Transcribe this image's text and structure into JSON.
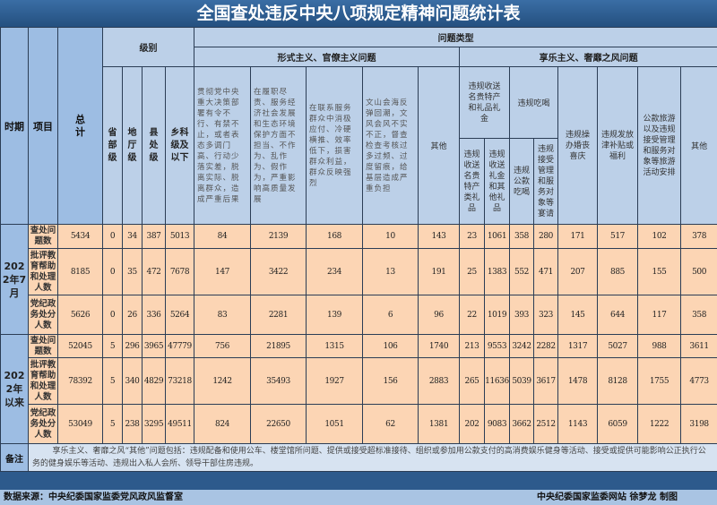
{
  "title": "全国查处违反中央八项规定精神问题统计表",
  "headers": {
    "period": "时期",
    "item": "项目",
    "total": "总计",
    "level": "级别",
    "levels": [
      "省部级",
      "地厅级",
      "县处级",
      "乡科级及以下"
    ],
    "problem_type": "问题类型",
    "formalism": "形式主义、官僚主义问题",
    "formalism_cols": [
      "贯彻党中央重大决策部署有令不行、有禁不止，或者表态多调门高、行动少落实差，脱离实际、脱离群众，造成严重后果",
      "在履职尽责、服务经济社会发展和生态环境保护方面不担当、不作为、乱作为、假作为，严重影响高质量发展",
      "在联系服务群众中消极应付、冷硬横推、效率低下，损害群众利益，群众反映强烈",
      "文山会海反弹回潮，文风会风不实不正，督查检查考核过多过频、过度留痕，给基层造成严重负担",
      "其他"
    ],
    "hedonism": "享乐主义、奢靡之风问题",
    "gifts": "违规收送名贵特产和礼品礼金",
    "gifts_sub": [
      "违规收送名贵特产类礼品",
      "违规收送礼金和其他礼品"
    ],
    "dining": "违规吃喝",
    "dining_sub": [
      "违规公款吃喝",
      "违规接受管理和服务对象等宴请"
    ],
    "weddings": "违规操办婚丧喜庆",
    "subsidies": "违规发放津补贴或福利",
    "travel": "公款旅游以及违规接受管理和服务对象等旅游活动安排",
    "other": "其他"
  },
  "periods": [
    {
      "label": "2022年7月",
      "rows": [
        {
          "item": "查处问题数",
          "values": [
            "5434",
            "0",
            "34",
            "387",
            "5013",
            "84",
            "2139",
            "168",
            "10",
            "143",
            "23",
            "1061",
            "358",
            "280",
            "171",
            "517",
            "102",
            "378"
          ]
        },
        {
          "item": "批评教育帮助和处理人数",
          "values": [
            "8185",
            "0",
            "35",
            "472",
            "7678",
            "147",
            "3422",
            "234",
            "13",
            "191",
            "25",
            "1383",
            "552",
            "471",
            "207",
            "885",
            "155",
            "500"
          ]
        },
        {
          "item": "党纪政务处分人数",
          "values": [
            "5626",
            "0",
            "26",
            "336",
            "5264",
            "83",
            "2281",
            "139",
            "6",
            "96",
            "22",
            "1019",
            "393",
            "323",
            "145",
            "644",
            "117",
            "358"
          ]
        }
      ]
    },
    {
      "label": "2022年以来",
      "rows": [
        {
          "item": "查处问题数",
          "values": [
            "52045",
            "5",
            "296",
            "3965",
            "47779",
            "756",
            "21895",
            "1315",
            "106",
            "1740",
            "213",
            "9553",
            "3242",
            "2282",
            "1317",
            "5027",
            "988",
            "3611"
          ]
        },
        {
          "item": "批评教育帮助和处理人数",
          "values": [
            "78392",
            "5",
            "340",
            "4829",
            "73218",
            "1242",
            "35493",
            "1927",
            "156",
            "2883",
            "265",
            "11636",
            "5039",
            "3617",
            "1478",
            "8128",
            "1755",
            "4773"
          ]
        },
        {
          "item": "党纪政务处分人数",
          "values": [
            "53049",
            "5",
            "238",
            "3295",
            "49511",
            "824",
            "22650",
            "1051",
            "62",
            "1381",
            "202",
            "9083",
            "3662",
            "2512",
            "1143",
            "6059",
            "1222",
            "3198"
          ]
        }
      ]
    }
  ],
  "note": {
    "label": "备注",
    "text": "享乐主义、奢靡之风“其他”问题包括：违规配备和使用公车、楼堂馆所问题、提供或接受超标准接待、组织或参加用公款支付的高消费娱乐健身等活动、接受或提供可能影响公正执行公务的健身娱乐等活动、违规出入私人会所、领导干部住房违规。"
  },
  "footer": {
    "source": "数据来源：中央纪委国家监委党风政风监督室",
    "credit": "中央纪委国家监委网站 徐梦龙 制图"
  }
}
